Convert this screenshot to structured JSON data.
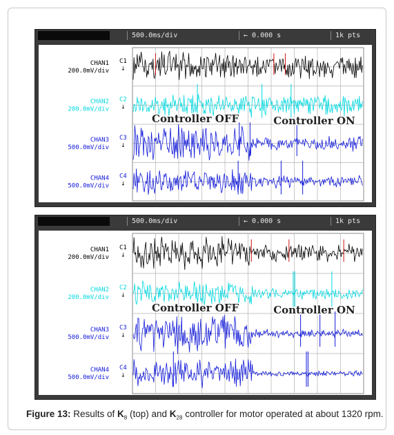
{
  "scopes": [
    {
      "id": "top",
      "header": {
        "timebase": "500.0ms/div",
        "trigger": "← 0.000 s",
        "points": "1k pts"
      },
      "overlay_left": "Controller OFF",
      "overlay_right": "Controller ON",
      "channels": [
        {
          "label": "CHAN1",
          "scale": "200.0mV/div",
          "marker": "C1",
          "color": "#000000"
        },
        {
          "label": "CHAN2",
          "scale": "200.0mV/div",
          "marker": "C2",
          "color": "#00d8e0"
        },
        {
          "label": "CHAN3",
          "scale": "500.0mV/div",
          "marker": "C3",
          "color": "#1018d8"
        },
        {
          "label": "CHAN4",
          "scale": "500.0mV/div",
          "marker": "C4",
          "color": "#1018d8"
        }
      ]
    },
    {
      "id": "bottom",
      "header": {
        "timebase": "500.0ms/div",
        "trigger": "← 0.000 s",
        "points": "1k pts"
      },
      "overlay_left": "Controller OFF",
      "overlay_right": "Controller ON",
      "channels": [
        {
          "label": "CHAN1",
          "scale": "200.0mV/div",
          "marker": "C1",
          "color": "#000000"
        },
        {
          "label": "CHAN2",
          "scale": "200.0mV/div",
          "marker": "C2",
          "color": "#00d8e0"
        },
        {
          "label": "CHAN3",
          "scale": "500.0mV/div",
          "marker": "C3",
          "color": "#1018d8"
        },
        {
          "label": "CHAN4",
          "scale": "500.0mV/div",
          "marker": "C4",
          "color": "#1018d8"
        }
      ]
    }
  ],
  "caption": {
    "label": "Figure 13:",
    "t1": " Results of ",
    "k1": "K",
    "s1": "8",
    "t2": " (top) and ",
    "k2": "K",
    "s2": "28",
    "t3": " controller for motor operated at about 1320 rpm."
  },
  "chart_data": [
    {
      "type": "line",
      "title": "",
      "x_divisions": 10,
      "time_per_div": "500.0ms/div",
      "switch_division": 5.2,
      "series": [
        {
          "name": "CHAN1",
          "amplitude_off_div": 0.45,
          "amplitude_on_div": 0.35
        },
        {
          "name": "CHAN2",
          "amplitude_off_div": 0.35,
          "amplitude_on_div": 0.3
        },
        {
          "name": "CHAN3",
          "amplitude_off_div": 0.55,
          "amplitude_on_div": 0.22
        },
        {
          "name": "CHAN4",
          "amplitude_off_div": 0.4,
          "amplitude_on_div": 0.18
        }
      ]
    },
    {
      "type": "line",
      "title": "",
      "x_divisions": 10,
      "time_per_div": "500.0ms/div",
      "switch_division": 5.2,
      "series": [
        {
          "name": "CHAN1",
          "amplitude_off_div": 0.45,
          "amplitude_on_div": 0.25
        },
        {
          "name": "CHAN2",
          "amplitude_off_div": 0.35,
          "amplitude_on_div": 0.15
        },
        {
          "name": "CHAN3",
          "amplitude_off_div": 0.55,
          "amplitude_on_div": 0.12
        },
        {
          "name": "CHAN4",
          "amplitude_off_div": 0.4,
          "amplitude_on_div": 0.08
        }
      ]
    }
  ]
}
